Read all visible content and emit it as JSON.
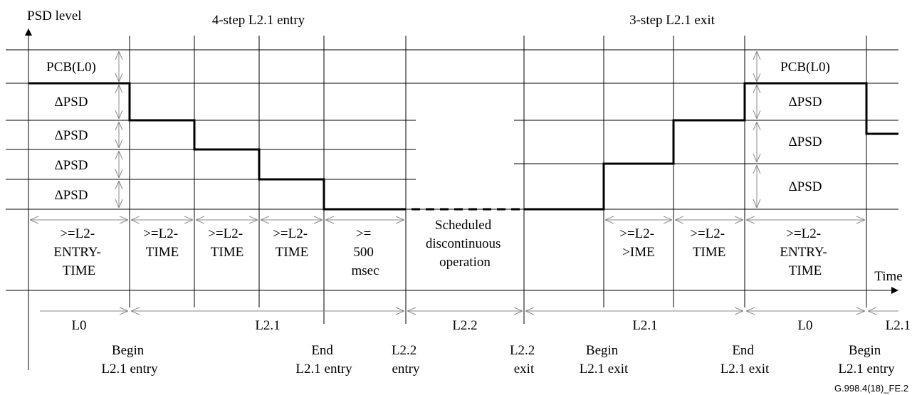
{
  "titles": {
    "y_axis": "PSD level",
    "x_axis": "Time",
    "entry": "4-step L2.1 entry",
    "exit": "3-step L2.1 exit",
    "figure_id": "G.998.4(18)_FE.2"
  },
  "levels": {
    "left": [
      {
        "id": "pcb",
        "label": "PCB(L0)"
      },
      {
        "id": "d1",
        "label": "ΔPSD"
      },
      {
        "id": "d2",
        "label": "ΔPSD"
      },
      {
        "id": "d3",
        "label": "ΔPSD"
      },
      {
        "id": "d4",
        "label": "ΔPSD"
      }
    ],
    "right": [
      {
        "id": "pcb",
        "label": "PCB(L0)"
      },
      {
        "id": "d1",
        "label": "ΔPSD"
      },
      {
        "id": "d2",
        "label": "ΔPSD"
      },
      {
        "id": "d3",
        "label": "ΔPSD"
      }
    ]
  },
  "durations": [
    {
      "id": "l2-entry-time-1",
      "lines": [
        ">=L2-",
        "ENTRY-",
        "TIME"
      ]
    },
    {
      "id": "l2-time-1",
      "lines": [
        ">=L2-",
        "TIME"
      ]
    },
    {
      "id": "l2-time-2",
      "lines": [
        ">=L2-",
        "TIME"
      ]
    },
    {
      "id": "l2-time-3",
      "lines": [
        ">=L2-",
        "TIME"
      ]
    },
    {
      "id": "500-msec",
      "lines": [
        ">=",
        "500",
        "msec"
      ]
    },
    {
      "id": "scheduled",
      "lines": [
        "Scheduled",
        "discontinuous",
        "operation"
      ]
    },
    {
      "id": "l2-time-4",
      "lines": [
        ">=L2-",
        ">IME"
      ]
    },
    {
      "id": "l2-time-5",
      "lines": [
        ">=L2-",
        "TIME"
      ]
    },
    {
      "id": "l2-entry-time-2",
      "lines": [
        ">=L2-",
        "ENTRY-",
        "TIME"
      ]
    }
  ],
  "states": [
    {
      "id": "l0-a",
      "label": "L0"
    },
    {
      "id": "l21-a",
      "label": "L2.1"
    },
    {
      "id": "l22",
      "label": "L2.2"
    },
    {
      "id": "l21-b",
      "label": "L2.1"
    },
    {
      "id": "l0-b",
      "label": "L0"
    },
    {
      "id": "l21-c",
      "label": "L2.1"
    }
  ],
  "events": [
    {
      "id": "begin-entry-1",
      "lines": [
        "Begin",
        "L2.1 entry"
      ]
    },
    {
      "id": "end-entry",
      "lines": [
        "End",
        "L2.1 entry"
      ]
    },
    {
      "id": "l22-entry",
      "lines": [
        "L2.2",
        "entry"
      ]
    },
    {
      "id": "l22-exit",
      "lines": [
        "L2.2",
        "exit"
      ]
    },
    {
      "id": "begin-exit",
      "lines": [
        "Begin",
        "L2.1 exit"
      ]
    },
    {
      "id": "end-exit",
      "lines": [
        "End",
        "L2.1 exit"
      ]
    },
    {
      "id": "begin-entry-2",
      "lines": [
        "Begin",
        "L2.1 entry"
      ]
    }
  ]
}
